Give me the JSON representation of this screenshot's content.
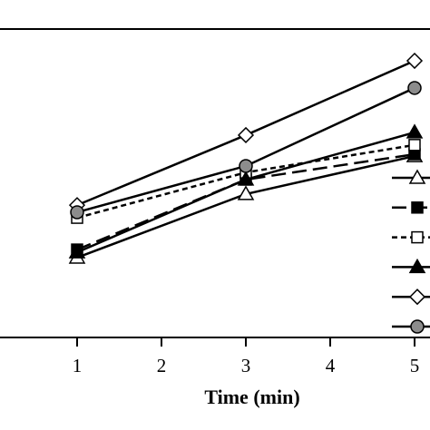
{
  "chart_data": {
    "type": "line",
    "x_label": "Time (min)",
    "x": [
      1,
      3,
      5
    ],
    "xlim": [
      0,
      5
    ],
    "xticks": [
      1,
      2,
      3,
      4,
      5
    ],
    "ylim": [
      0,
      100
    ],
    "series": [
      {
        "color": "#000000",
        "marker": "triangle",
        "marker_fill": "#ffffff",
        "dash": "solid",
        "values": [
          25.9,
          46.5,
          58.8
        ]
      },
      {
        "color": "#000000",
        "marker": "square",
        "marker_fill": "#000000",
        "dash": "long",
        "values": [
          28.5,
          51.2,
          59.4
        ]
      },
      {
        "color": "#000000",
        "marker": "square",
        "marker_fill": "#ffffff",
        "dash": "short",
        "values": [
          38.8,
          53.5,
          62.4
        ]
      },
      {
        "color": "#000000",
        "marker": "triangle",
        "marker_fill": "#000000",
        "dash": "solid",
        "values": [
          27.6,
          51.2,
          66.5
        ]
      },
      {
        "color": "#000000",
        "marker": "diamond",
        "marker_fill": "#ffffff",
        "dash": "solid",
        "values": [
          42.9,
          65.6,
          89.7
        ]
      },
      {
        "color": "#000000",
        "marker": "circle",
        "marker_fill": "#8c8c8c",
        "dash": "solid",
        "values": [
          40.6,
          55.6,
          80.9
        ]
      }
    ]
  }
}
